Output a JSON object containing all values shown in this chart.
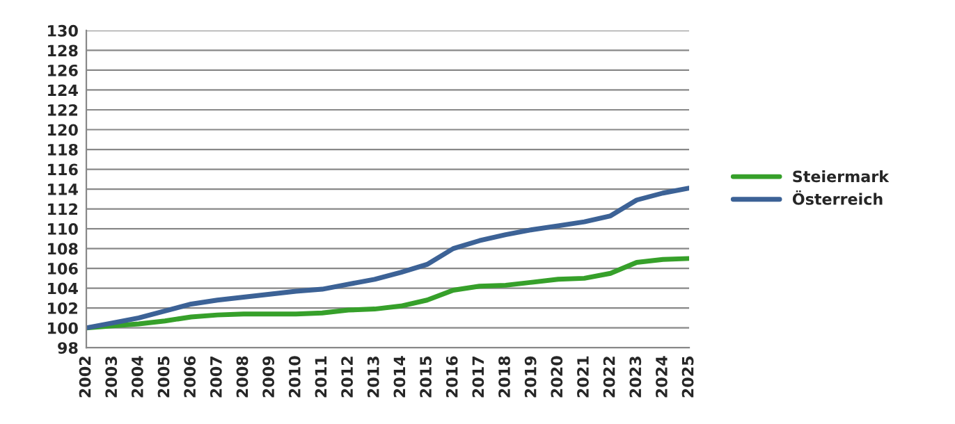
{
  "chart_data": {
    "type": "line",
    "categories": [
      "2002",
      "2003",
      "2004",
      "2005",
      "2006",
      "2007",
      "2008",
      "2009",
      "2010",
      "2011",
      "2012",
      "2013",
      "2014",
      "2015",
      "2016",
      "2017",
      "2018",
      "2019",
      "2020",
      "2021",
      "2022",
      "2023",
      "2024",
      "2025"
    ],
    "series": [
      {
        "name": "Steiermark",
        "color": "#36a02a",
        "values": [
          100,
          100.2,
          100.4,
          100.7,
          101.1,
          101.3,
          101.4,
          101.4,
          101.4,
          101.5,
          101.8,
          101.9,
          102.2,
          102.8,
          103.8,
          104.2,
          104.3,
          104.6,
          104.9,
          105.0,
          105.5,
          106.6,
          106.9,
          107.0
        ]
      },
      {
        "name": "Österreich",
        "color": "#3c6296",
        "values": [
          100,
          100.5,
          101.0,
          101.7,
          102.4,
          102.8,
          103.1,
          103.4,
          103.7,
          103.9,
          104.4,
          104.9,
          105.6,
          106.4,
          108.0,
          108.8,
          109.4,
          109.9,
          110.3,
          110.7,
          111.3,
          112.9,
          113.6,
          114.1
        ]
      }
    ],
    "ylim": [
      98,
      130
    ],
    "yticks": [
      98,
      100,
      102,
      104,
      106,
      108,
      110,
      112,
      114,
      116,
      118,
      120,
      122,
      124,
      126,
      128,
      130
    ],
    "grid": "y",
    "legend": "right",
    "marker": "none",
    "line_style": "solid"
  }
}
